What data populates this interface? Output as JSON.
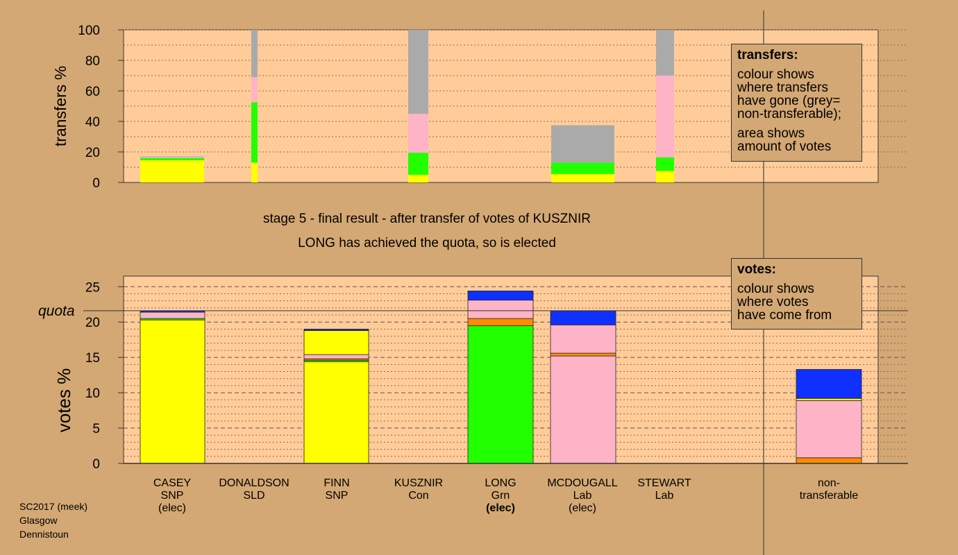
{
  "chart_data": [
    {
      "type": "bar",
      "stacked": true,
      "ylabel": "transfers %",
      "ylim": [
        0,
        100
      ],
      "yticks": [
        0,
        20,
        40,
        60,
        80,
        100
      ],
      "grid": true,
      "colors": {
        "snp": "#ffff00",
        "grn": "#22ff00",
        "lab": "#ffb3c6",
        "nontransferable": "#aaaaaa",
        "con": "#1030ff",
        "sld": "#ff8c00"
      },
      "bars": [
        {
          "candidate": "CASEY",
          "segments": [
            {
              "party": "snp",
              "value": 14.5
            },
            {
              "party": "grn",
              "value": 1.5
            },
            {
              "party": "lab",
              "value": 0.5
            },
            {
              "party": "nontransferable",
              "value": 0.5
            }
          ]
        },
        {
          "candidate": "DONALDSON",
          "segments": [
            {
              "party": "snp",
              "value": 13
            },
            {
              "party": "grn",
              "value": 39.5
            },
            {
              "party": "lab",
              "value": 16.5
            },
            {
              "party": "nontransferable",
              "value": 31
            }
          ]
        },
        {
          "candidate": "KUSZNIR",
          "segments": [
            {
              "party": "snp",
              "value": 5
            },
            {
              "party": "grn",
              "value": 14.5
            },
            {
              "party": "lab",
              "value": 25.5
            },
            {
              "party": "nontransferable",
              "value": 55
            }
          ]
        },
        {
          "candidate": "MCDOUGALL",
          "segments": [
            {
              "party": "snp",
              "value": 5.5
            },
            {
              "party": "grn",
              "value": 7.5
            },
            {
              "party": "nontransferable",
              "value": 24.5
            }
          ]
        },
        {
          "candidate": "STEWART",
          "segments": [
            {
              "party": "snp",
              "value": 7.5
            },
            {
              "party": "grn",
              "value": 9
            },
            {
              "party": "lab",
              "value": 53.5
            },
            {
              "party": "nontransferable",
              "value": 30
            }
          ]
        }
      ]
    },
    {
      "type": "bar",
      "stacked": true,
      "ylabel": "votes %",
      "ylim": [
        0,
        26.5
      ],
      "yticks": [
        0,
        5,
        10,
        15,
        20,
        25
      ],
      "quota": 21.6,
      "quota_label": "quota",
      "grid": true,
      "categories": [
        "CASEY",
        "DONALDSON",
        "FINN",
        "KUSZNIR",
        "LONG",
        "MCDOUGALL",
        "STEWART",
        "non-transferable"
      ],
      "bars": [
        {
          "candidate": "CASEY",
          "segments": [
            {
              "party": "snp",
              "value": 20.3
            },
            {
              "party": "grn",
              "value": 0.2
            },
            {
              "party": "lab",
              "value": 0.9
            },
            {
              "party": "con",
              "value": 0.2
            }
          ]
        },
        {
          "candidate": "DONALDSON",
          "segments": []
        },
        {
          "candidate": "FINN",
          "segments": [
            {
              "party": "snp",
              "value": 14.4
            },
            {
              "party": "grn",
              "value": 0.2
            },
            {
              "party": "sld",
              "value": 0.2
            },
            {
              "party": "lab",
              "value": 0.6
            },
            {
              "party": "snp",
              "value": 3.4
            },
            {
              "party": "con",
              "value": 0.2
            }
          ]
        },
        {
          "candidate": "KUSZNIR",
          "segments": []
        },
        {
          "candidate": "LONG",
          "segments": [
            {
              "party": "grn",
              "value": 19.5
            },
            {
              "party": "sld",
              "value": 1.0
            },
            {
              "party": "lab",
              "value": 2.6
            },
            {
              "party": "con",
              "value": 1.3
            }
          ]
        },
        {
          "candidate": "MCDOUGALL",
          "segments": [
            {
              "party": "lab",
              "value": 15.2
            },
            {
              "party": "sld",
              "value": 0.4
            },
            {
              "party": "lab",
              "value": 4.0
            },
            {
              "party": "con",
              "value": 2.0
            }
          ]
        },
        {
          "candidate": "STEWART",
          "segments": []
        },
        {
          "candidate": "non-transferable",
          "segments": [
            {
              "party": "sld",
              "value": 0.8
            },
            {
              "party": "lab",
              "value": 8.1
            },
            {
              "party": "snp",
              "value": 0.3
            },
            {
              "party": "con",
              "value": 4.1
            }
          ]
        }
      ]
    }
  ],
  "captions": {
    "stage": "stage 5 - final result - after transfer of votes of KUSZNIR",
    "elected": "LONG has achieved the quota, so is elected"
  },
  "transfers_box": {
    "title": "transfers:",
    "lines1": [
      "colour shows",
      "where transfers",
      "have gone (grey=",
      "non-transferable);"
    ],
    "lines2": [
      "area shows",
      "amount of votes"
    ]
  },
  "votes_box": {
    "title": "votes:",
    "lines": [
      "colour shows",
      "where votes",
      "have come from"
    ]
  },
  "candidates": [
    {
      "name": "CASEY",
      "party": "SNP",
      "status": "(elec)",
      "bold": false
    },
    {
      "name": "DONALDSON",
      "party": "SLD",
      "status": "",
      "bold": false
    },
    {
      "name": "FINN",
      "party": "SNP",
      "status": "",
      "bold": false
    },
    {
      "name": "KUSZNIR",
      "party": "Con",
      "status": "",
      "bold": false
    },
    {
      "name": "LONG",
      "party": "Grn",
      "status": "(elec)",
      "bold": true
    },
    {
      "name": "MCDOUGALL",
      "party": "Lab",
      "status": "(elec)",
      "bold": false
    },
    {
      "name": "STEWART",
      "party": "Lab",
      "status": "",
      "bold": false
    },
    {
      "name": "non-",
      "party": "transferable",
      "status": "",
      "bold": false
    }
  ],
  "footer": {
    "line1": "SC2017 (meek)",
    "line2": "Glasgow",
    "line3": "Dennistoun"
  }
}
